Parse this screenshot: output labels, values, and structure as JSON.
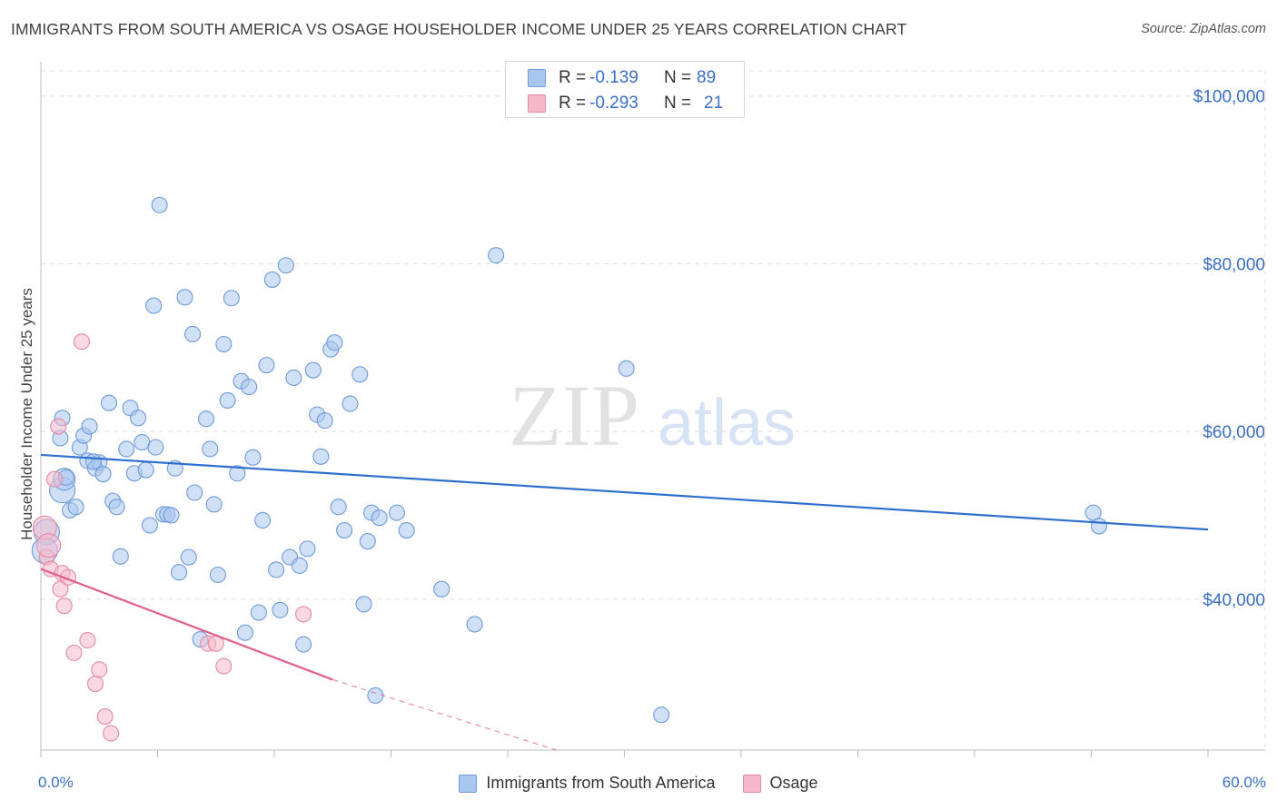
{
  "title": "IMMIGRANTS FROM SOUTH AMERICA VS OSAGE HOUSEHOLDER INCOME UNDER 25 YEARS CORRELATION CHART",
  "source": "Source: ZipAtlas.com",
  "watermark": {
    "zip": "ZIP",
    "atlas": "atlas"
  },
  "colors": {
    "blue_fill": "#a9c6ef",
    "blue_stroke": "#6f9bd9",
    "blue_line": "#2d6fcc",
    "pink_fill": "#f6b9cc",
    "pink_stroke": "#e48aa7",
    "pink_line": "#e0608a",
    "axis_text": "#3a6fc4",
    "grid": "#dddddd"
  },
  "stats": [
    {
      "r_label": "R =",
      "r_value": "-0.139",
      "n_label": "N =",
      "n_value": "89"
    },
    {
      "r_label": "R =",
      "r_value": "-0.293",
      "n_label": "N =",
      "n_value": "21"
    }
  ],
  "legend": [
    "Immigrants from South America",
    "Osage"
  ],
  "chart_data": {
    "type": "scatter",
    "title": "IMMIGRANTS FROM SOUTH AMERICA VS OSAGE HOUSEHOLDER INCOME UNDER 25 YEARS CORRELATION CHART",
    "xlabel": "",
    "ylabel": "Householder Income Under 25 years",
    "xlim": [
      0,
      60
    ],
    "ylim": [
      22000,
      103000
    ],
    "x_tick_labels": {
      "min": "0.0%",
      "max": "60.0%"
    },
    "y_ticks": [
      40000,
      60000,
      80000,
      100000
    ],
    "y_tick_labels": [
      "$40,000",
      "$60,000",
      "$80,000",
      "$100,000"
    ],
    "grid": true,
    "series": [
      {
        "name": "Immigrants from South America",
        "points": [
          [
            0.3,
            48000
          ],
          [
            0.2,
            45800
          ],
          [
            1.1,
            53000
          ],
          [
            1.2,
            54300
          ],
          [
            1.0,
            59200
          ],
          [
            1.1,
            61600
          ],
          [
            1.5,
            50600
          ],
          [
            1.8,
            51000
          ],
          [
            2.0,
            58100
          ],
          [
            2.2,
            59500
          ],
          [
            2.4,
            56500
          ],
          [
            2.5,
            60600
          ],
          [
            2.8,
            55600
          ],
          [
            3.0,
            56300
          ],
          [
            3.2,
            54900
          ],
          [
            3.5,
            63400
          ],
          [
            3.7,
            51700
          ],
          [
            3.9,
            51000
          ],
          [
            4.1,
            45100
          ],
          [
            4.4,
            57900
          ],
          [
            4.6,
            62800
          ],
          [
            4.8,
            55000
          ],
          [
            5.0,
            61600
          ],
          [
            5.2,
            58700
          ],
          [
            5.4,
            55400
          ],
          [
            5.6,
            48800
          ],
          [
            5.8,
            75000
          ],
          [
            5.9,
            58100
          ],
          [
            6.1,
            87000
          ],
          [
            6.3,
            50100
          ],
          [
            6.5,
            50100
          ],
          [
            6.7,
            50000
          ],
          [
            6.9,
            55600
          ],
          [
            7.1,
            43200
          ],
          [
            7.4,
            76000
          ],
          [
            7.6,
            45000
          ],
          [
            7.8,
            71600
          ],
          [
            7.9,
            52700
          ],
          [
            8.2,
            35200
          ],
          [
            8.5,
            61500
          ],
          [
            8.7,
            57900
          ],
          [
            8.9,
            51300
          ],
          [
            9.1,
            42900
          ],
          [
            9.4,
            70400
          ],
          [
            9.6,
            63700
          ],
          [
            9.8,
            75900
          ],
          [
            10.1,
            55000
          ],
          [
            10.3,
            66000
          ],
          [
            10.5,
            36000
          ],
          [
            10.7,
            65300
          ],
          [
            10.9,
            56900
          ],
          [
            11.2,
            38400
          ],
          [
            11.4,
            49400
          ],
          [
            11.6,
            67900
          ],
          [
            11.9,
            78100
          ],
          [
            12.1,
            43500
          ],
          [
            12.3,
            38700
          ],
          [
            12.6,
            79800
          ],
          [
            12.8,
            45000
          ],
          [
            13.0,
            66400
          ],
          [
            13.3,
            44000
          ],
          [
            13.5,
            34600
          ],
          [
            13.7,
            46000
          ],
          [
            14.0,
            67300
          ],
          [
            14.2,
            62000
          ],
          [
            14.4,
            57000
          ],
          [
            14.6,
            61300
          ],
          [
            14.9,
            69800
          ],
          [
            15.1,
            70600
          ],
          [
            15.3,
            51000
          ],
          [
            15.6,
            48200
          ],
          [
            15.9,
            63300
          ],
          [
            16.4,
            66800
          ],
          [
            16.6,
            39400
          ],
          [
            16.8,
            46900
          ],
          [
            17.0,
            50300
          ],
          [
            17.2,
            28500
          ],
          [
            17.4,
            49700
          ],
          [
            18.3,
            50300
          ],
          [
            18.8,
            48200
          ],
          [
            20.6,
            41200
          ],
          [
            22.3,
            37000
          ],
          [
            23.4,
            81000
          ],
          [
            30.1,
            67500
          ],
          [
            31.9,
            26200
          ],
          [
            54.1,
            50300
          ],
          [
            54.4,
            48700
          ],
          [
            1.3,
            54500
          ],
          [
            2.7,
            56400
          ]
        ]
      },
      {
        "name": "Osage",
        "points": [
          [
            0.2,
            48500
          ],
          [
            0.3,
            45000
          ],
          [
            0.5,
            43600
          ],
          [
            0.7,
            54300
          ],
          [
            0.9,
            60600
          ],
          [
            1.0,
            41200
          ],
          [
            1.1,
            43100
          ],
          [
            1.2,
            39200
          ],
          [
            1.4,
            42600
          ],
          [
            1.7,
            33600
          ],
          [
            2.1,
            70700
          ],
          [
            2.4,
            35100
          ],
          [
            2.8,
            29900
          ],
          [
            3.0,
            31600
          ],
          [
            3.3,
            26000
          ],
          [
            3.6,
            24000
          ],
          [
            8.6,
            34700
          ],
          [
            9.0,
            34700
          ],
          [
            9.4,
            32000
          ],
          [
            13.5,
            38200
          ],
          [
            0.4,
            46400
          ]
        ]
      }
    ],
    "trendlines": [
      {
        "series": "Immigrants from South America",
        "x": [
          0,
          60
        ],
        "y": [
          57200,
          48300
        ]
      },
      {
        "series": "Osage",
        "x": [
          0,
          15
        ],
        "y": [
          43600,
          30400
        ],
        "dashed_extension_to_x": 26.5,
        "dashed_end_y": 20500
      }
    ]
  }
}
